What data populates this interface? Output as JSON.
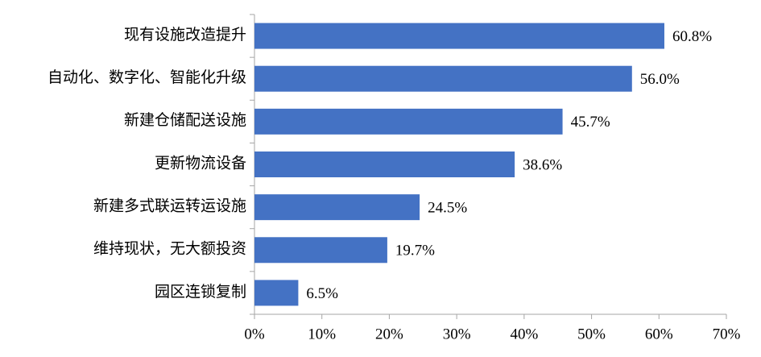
{
  "chart_data": {
    "type": "bar",
    "orientation": "horizontal",
    "categories": [
      "现有设施改造提升",
      "自动化、数字化、智能化升级",
      "新建仓储配送设施",
      "更新物流设备",
      "新建多式联运转运设施",
      "维持现状，无大额投资",
      "园区连锁复制"
    ],
    "values": [
      60.8,
      56.0,
      45.7,
      38.6,
      24.5,
      19.7,
      6.5
    ],
    "value_labels": [
      "60.8%",
      "56.0%",
      "45.7%",
      "38.6%",
      "24.5%",
      "19.7%",
      "6.5%"
    ],
    "color": "#4472c4",
    "xlim": [
      0,
      70
    ],
    "xticks": [
      {
        "value": 0,
        "label": "0%"
      },
      {
        "value": 10,
        "label": "10%"
      },
      {
        "value": 20,
        "label": "20%"
      },
      {
        "value": 30,
        "label": "30%"
      },
      {
        "value": 40,
        "label": "40%"
      },
      {
        "value": 50,
        "label": "50%"
      },
      {
        "value": 60,
        "label": "60%"
      },
      {
        "value": 70,
        "label": "70%"
      }
    ],
    "grid": false
  }
}
